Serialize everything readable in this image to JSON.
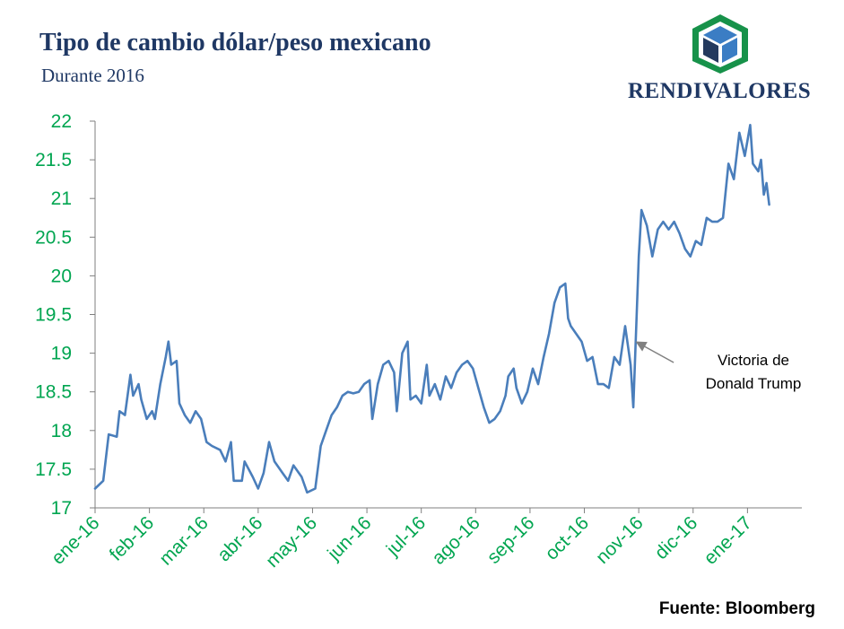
{
  "header": {
    "title": "Tipo de cambio dólar/peso mexicano",
    "subtitle": "Durante 2016"
  },
  "brand": {
    "name": "RENDIVALORES",
    "logo_icon": "cube-logo-icon",
    "colors": {
      "frame": "#17924a",
      "dark": "#243a5e",
      "light": "#3b7dc4"
    }
  },
  "source": "Fuente: Bloomberg",
  "colors": {
    "line": "#4a7ebb",
    "tick_labels": "#00a550",
    "axis": "#7f7f7f"
  },
  "chart_data": {
    "type": "line",
    "title": "Tipo de cambio dólar/peso mexicano",
    "subtitle": "Durante 2016",
    "xlabel": "",
    "ylabel": "",
    "ylim": [
      17,
      22
    ],
    "yticks": [
      17,
      17.5,
      18,
      18.5,
      19,
      19.5,
      20,
      20.5,
      21,
      21.5,
      22
    ],
    "ytick_labels": [
      "17",
      "17.5",
      "18",
      "18.5",
      "19",
      "19.5",
      "20",
      "20.5",
      "21",
      "21.5",
      "22"
    ],
    "xlim": [
      0,
      13
    ],
    "xticks": [
      0,
      1,
      2,
      3,
      4,
      5,
      6,
      7,
      8,
      9,
      10,
      11,
      12
    ],
    "xtick_labels": [
      "ene-16",
      "feb-16",
      "mar-16",
      "abr-16",
      "may-16",
      "jun-16",
      "jul-16",
      "ago-16",
      "sep-16",
      "oct-16",
      "nov-16",
      "dic-16",
      "ene-17"
    ],
    "grid": false,
    "legend": "none",
    "series": [
      {
        "values": [
          [
            0.0,
            17.25
          ],
          [
            0.15,
            17.35
          ],
          [
            0.25,
            17.95
          ],
          [
            0.4,
            17.92
          ],
          [
            0.45,
            18.25
          ],
          [
            0.55,
            18.2
          ],
          [
            0.65,
            18.72
          ],
          [
            0.7,
            18.45
          ],
          [
            0.8,
            18.6
          ],
          [
            0.85,
            18.4
          ],
          [
            0.95,
            18.15
          ],
          [
            1.05,
            18.25
          ],
          [
            1.1,
            18.15
          ],
          [
            1.2,
            18.6
          ],
          [
            1.3,
            18.95
          ],
          [
            1.35,
            19.15
          ],
          [
            1.4,
            18.85
          ],
          [
            1.5,
            18.9
          ],
          [
            1.55,
            18.35
          ],
          [
            1.65,
            18.2
          ],
          [
            1.75,
            18.1
          ],
          [
            1.85,
            18.25
          ],
          [
            1.95,
            18.15
          ],
          [
            2.05,
            17.85
          ],
          [
            2.15,
            17.8
          ],
          [
            2.3,
            17.75
          ],
          [
            2.4,
            17.6
          ],
          [
            2.5,
            17.85
          ],
          [
            2.55,
            17.35
          ],
          [
            2.7,
            17.35
          ],
          [
            2.75,
            17.6
          ],
          [
            2.9,
            17.4
          ],
          [
            3.0,
            17.25
          ],
          [
            3.1,
            17.45
          ],
          [
            3.2,
            17.85
          ],
          [
            3.3,
            17.6
          ],
          [
            3.45,
            17.45
          ],
          [
            3.55,
            17.35
          ],
          [
            3.65,
            17.55
          ],
          [
            3.8,
            17.4
          ],
          [
            3.9,
            17.2
          ],
          [
            4.05,
            17.25
          ],
          [
            4.15,
            17.8
          ],
          [
            4.25,
            18.0
          ],
          [
            4.35,
            18.2
          ],
          [
            4.45,
            18.3
          ],
          [
            4.55,
            18.45
          ],
          [
            4.65,
            18.5
          ],
          [
            4.75,
            18.48
          ],
          [
            4.85,
            18.5
          ],
          [
            4.95,
            18.6
          ],
          [
            5.05,
            18.65
          ],
          [
            5.1,
            18.15
          ],
          [
            5.2,
            18.6
          ],
          [
            5.3,
            18.85
          ],
          [
            5.4,
            18.9
          ],
          [
            5.5,
            18.75
          ],
          [
            5.55,
            18.25
          ],
          [
            5.65,
            19.0
          ],
          [
            5.75,
            19.15
          ],
          [
            5.8,
            18.4
          ],
          [
            5.9,
            18.45
          ],
          [
            6.0,
            18.35
          ],
          [
            6.1,
            18.85
          ],
          [
            6.15,
            18.45
          ],
          [
            6.25,
            18.6
          ],
          [
            6.35,
            18.4
          ],
          [
            6.45,
            18.7
          ],
          [
            6.55,
            18.55
          ],
          [
            6.65,
            18.75
          ],
          [
            6.75,
            18.85
          ],
          [
            6.85,
            18.9
          ],
          [
            6.95,
            18.8
          ],
          [
            7.05,
            18.55
          ],
          [
            7.15,
            18.3
          ],
          [
            7.25,
            18.1
          ],
          [
            7.35,
            18.15
          ],
          [
            7.45,
            18.25
          ],
          [
            7.55,
            18.45
          ],
          [
            7.6,
            18.7
          ],
          [
            7.7,
            18.8
          ],
          [
            7.75,
            18.55
          ],
          [
            7.85,
            18.35
          ],
          [
            7.95,
            18.5
          ],
          [
            8.05,
            18.8
          ],
          [
            8.15,
            18.6
          ],
          [
            8.25,
            18.95
          ],
          [
            8.35,
            19.25
          ],
          [
            8.45,
            19.65
          ],
          [
            8.55,
            19.85
          ],
          [
            8.65,
            19.9
          ],
          [
            8.7,
            19.45
          ],
          [
            8.75,
            19.35
          ],
          [
            8.85,
            19.25
          ],
          [
            8.95,
            19.15
          ],
          [
            9.05,
            18.9
          ],
          [
            9.15,
            18.95
          ],
          [
            9.25,
            18.6
          ],
          [
            9.35,
            18.6
          ],
          [
            9.45,
            18.55
          ],
          [
            9.55,
            18.95
          ],
          [
            9.65,
            18.85
          ],
          [
            9.75,
            19.35
          ],
          [
            9.85,
            18.85
          ],
          [
            9.9,
            18.3
          ],
          [
            10.0,
            20.25
          ],
          [
            10.05,
            20.85
          ],
          [
            10.15,
            20.65
          ],
          [
            10.25,
            20.25
          ],
          [
            10.35,
            20.6
          ],
          [
            10.45,
            20.7
          ],
          [
            10.55,
            20.6
          ],
          [
            10.65,
            20.7
          ],
          [
            10.75,
            20.55
          ],
          [
            10.85,
            20.35
          ],
          [
            10.95,
            20.25
          ],
          [
            11.05,
            20.45
          ],
          [
            11.15,
            20.4
          ],
          [
            11.25,
            20.75
          ],
          [
            11.35,
            20.7
          ],
          [
            11.45,
            20.7
          ],
          [
            11.55,
            20.75
          ],
          [
            11.65,
            21.45
          ],
          [
            11.75,
            21.25
          ],
          [
            11.85,
            21.85
          ],
          [
            11.95,
            21.55
          ],
          [
            12.0,
            21.75
          ],
          [
            12.05,
            21.95
          ],
          [
            12.1,
            21.45
          ],
          [
            12.2,
            21.35
          ],
          [
            12.25,
            21.5
          ],
          [
            12.3,
            21.05
          ],
          [
            12.35,
            21.2
          ],
          [
            12.4,
            20.92
          ]
        ]
      }
    ],
    "annotations": [
      {
        "text_lines": [
          "Victoria de",
          "Donald Trump"
        ],
        "arrow_to_x": 9.95
      }
    ]
  }
}
